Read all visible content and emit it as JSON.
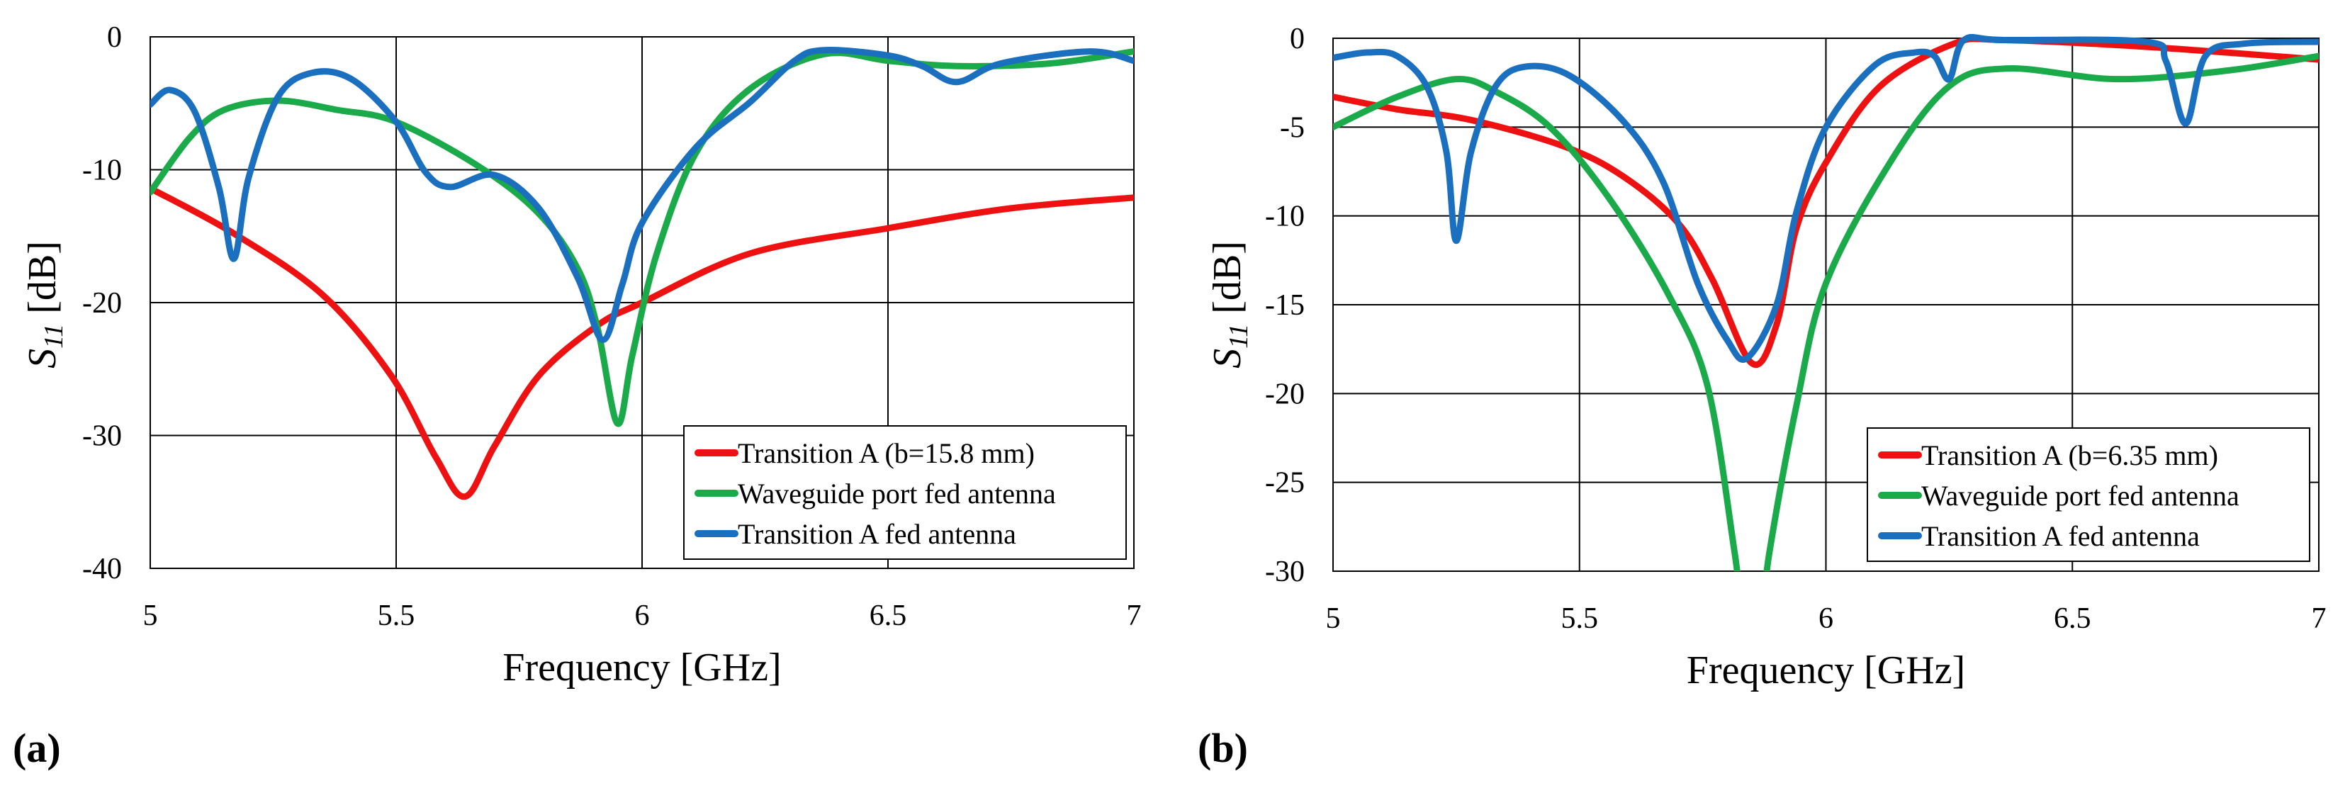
{
  "colors": {
    "red": "#ee1111",
    "green": "#1aaa4a",
    "blue": "#1a6fbf",
    "grid": "#000000"
  },
  "chart_data": [
    {
      "type": "line",
      "panel_label": "(a)",
      "xlabel": "Frequency [GHz]",
      "ylabel_main": "S",
      "ylabel_sub": "11",
      "ylabel_unit": " [dB]",
      "xlim": [
        5,
        7
      ],
      "ylim": [
        -40,
        0
      ],
      "xticks": [
        5,
        5.5,
        6,
        6.5,
        7
      ],
      "xtick_labels": [
        "5",
        "5.5",
        "6",
        "6.5",
        "7"
      ],
      "yticks": [
        0,
        -10,
        -20,
        -30,
        -40
      ],
      "ytick_labels": [
        "0",
        "-10",
        "-20",
        "-30",
        "-40"
      ],
      "grid": true,
      "legend_position": "bottom-right",
      "series": [
        {
          "name": "Transition A (b=15.8 mm)",
          "color": "red",
          "points": [
            [
              5,
              -11.4
            ],
            [
              5.17,
              -14.8
            ],
            [
              5.35,
              -19.4
            ],
            [
              5.49,
              -25.5
            ],
            [
              5.58,
              -31.6
            ],
            [
              5.64,
              -34.6
            ],
            [
              5.7,
              -30.8
            ],
            [
              5.79,
              -25.5
            ],
            [
              5.91,
              -21.7
            ],
            [
              6,
              -20
            ],
            [
              6.22,
              -16.3
            ],
            [
              6.5,
              -14.4
            ],
            [
              6.75,
              -12.9
            ],
            [
              7,
              -12.1
            ]
          ]
        },
        {
          "name": "Waveguide port fed antenna",
          "color": "green",
          "points": [
            [
              5,
              -11.7
            ],
            [
              5.08,
              -7.6
            ],
            [
              5.15,
              -5.5
            ],
            [
              5.26,
              -4.8
            ],
            [
              5.38,
              -5.5
            ],
            [
              5.5,
              -6.4
            ],
            [
              5.67,
              -9.8
            ],
            [
              5.79,
              -13.3
            ],
            [
              5.87,
              -17.5
            ],
            [
              5.91,
              -22
            ],
            [
              5.95,
              -29.1
            ],
            [
              5.98,
              -24
            ],
            [
              6.03,
              -16.3
            ],
            [
              6.11,
              -8.7
            ],
            [
              6.22,
              -3.9
            ],
            [
              6.37,
              -1.3
            ],
            [
              6.5,
              -1.8
            ],
            [
              6.64,
              -2.2
            ],
            [
              6.83,
              -2
            ],
            [
              7,
              -1.1
            ]
          ]
        },
        {
          "name": "Transition A fed antenna",
          "color": "blue",
          "points": [
            [
              5,
              -5.1
            ],
            [
              5.04,
              -4
            ],
            [
              5.09,
              -5.6
            ],
            [
              5.14,
              -11.4
            ],
            [
              5.17,
              -16.7
            ],
            [
              5.2,
              -10.6
            ],
            [
              5.26,
              -4.5
            ],
            [
              5.33,
              -2.7
            ],
            [
              5.41,
              -3.2
            ],
            [
              5.5,
              -6.4
            ],
            [
              5.56,
              -10.2
            ],
            [
              5.61,
              -11.3
            ],
            [
              5.7,
              -10.4
            ],
            [
              5.79,
              -12.9
            ],
            [
              5.87,
              -18.2
            ],
            [
              5.92,
              -22.8
            ],
            [
              5.96,
              -18.6
            ],
            [
              6,
              -14
            ],
            [
              6.11,
              -8.3
            ],
            [
              6.22,
              -4.9
            ],
            [
              6.31,
              -1.8
            ],
            [
              6.37,
              -1
            ],
            [
              6.5,
              -1.4
            ],
            [
              6.57,
              -2.2
            ],
            [
              6.64,
              -3.4
            ],
            [
              6.73,
              -2
            ],
            [
              6.91,
              -1.1
            ],
            [
              7,
              -1.8
            ]
          ]
        }
      ]
    },
    {
      "type": "line",
      "panel_label": "(b)",
      "xlabel": "Frequency [GHz]",
      "ylabel_main": "S",
      "ylabel_sub": "11",
      "ylabel_unit": " [dB]",
      "xlim": [
        5,
        7
      ],
      "ylim": [
        -30,
        0
      ],
      "xticks": [
        5,
        5.5,
        6,
        6.5,
        7
      ],
      "xtick_labels": [
        "5",
        "5.5",
        "6",
        "6.5",
        "7"
      ],
      "yticks": [
        0,
        -5,
        -10,
        -15,
        -20,
        -25,
        -30
      ],
      "ytick_labels": [
        "0",
        "-5",
        "-10",
        "-15",
        "-20",
        "-25",
        "-30"
      ],
      "grid": true,
      "legend_position": "bottom-right",
      "series": [
        {
          "name": "Transition A (b=6.35 mm)",
          "color": "red",
          "points": [
            [
              5,
              -3.3
            ],
            [
              5.13,
              -4
            ],
            [
              5.28,
              -4.6
            ],
            [
              5.47,
              -6.1
            ],
            [
              5.59,
              -7.8
            ],
            [
              5.7,
              -10.4
            ],
            [
              5.77,
              -13.6
            ],
            [
              5.85,
              -18.3
            ],
            [
              5.9,
              -16.1
            ],
            [
              5.94,
              -10.7
            ],
            [
              6,
              -7
            ],
            [
              6.11,
              -2.7
            ],
            [
              6.26,
              -0.3
            ],
            [
              6.36,
              -0.1
            ],
            [
              6.66,
              -0.5
            ],
            [
              7,
              -1.2
            ]
          ]
        },
        {
          "name": "Waveguide port fed antenna",
          "color": "green",
          "points": [
            [
              5,
              -5
            ],
            [
              5.13,
              -3.3
            ],
            [
              5.25,
              -2.3
            ],
            [
              5.33,
              -3
            ],
            [
              5.44,
              -5
            ],
            [
              5.56,
              -9
            ],
            [
              5.68,
              -14.4
            ],
            [
              5.76,
              -19.6
            ],
            [
              5.815,
              -29
            ],
            [
              5.85,
              -36
            ],
            [
              5.885,
              -29
            ],
            [
              5.94,
              -20.7
            ],
            [
              6,
              -13.8
            ],
            [
              6.13,
              -7
            ],
            [
              6.25,
              -2.7
            ],
            [
              6.37,
              -1.7
            ],
            [
              6.59,
              -2.3
            ],
            [
              6.82,
              -1.8
            ],
            [
              7,
              -1
            ]
          ]
        },
        {
          "name": "Transition A fed antenna",
          "color": "blue",
          "points": [
            [
              5,
              -1.1
            ],
            [
              5.07,
              -0.8
            ],
            [
              5.13,
              -1
            ],
            [
              5.19,
              -2.7
            ],
            [
              5.23,
              -6.4
            ],
            [
              5.25,
              -11.4
            ],
            [
              5.28,
              -6.4
            ],
            [
              5.33,
              -2.7
            ],
            [
              5.39,
              -1.6
            ],
            [
              5.48,
              -2.1
            ],
            [
              5.59,
              -4.7
            ],
            [
              5.67,
              -8.1
            ],
            [
              5.74,
              -13.8
            ],
            [
              5.8,
              -17
            ],
            [
              5.84,
              -18
            ],
            [
              5.9,
              -15
            ],
            [
              5.94,
              -9.8
            ],
            [
              6,
              -5
            ],
            [
              6.1,
              -1.5
            ],
            [
              6.18,
              -0.8
            ],
            [
              6.22,
              -1
            ],
            [
              6.25,
              -2.3
            ],
            [
              6.28,
              -0.1
            ],
            [
              6.36,
              -0.1
            ],
            [
              6.65,
              -0.2
            ],
            [
              6.69,
              -1.3
            ],
            [
              6.73,
              -4.8
            ],
            [
              6.77,
              -1
            ],
            [
              6.85,
              -0.3
            ],
            [
              7,
              -0.2
            ]
          ]
        }
      ]
    }
  ]
}
